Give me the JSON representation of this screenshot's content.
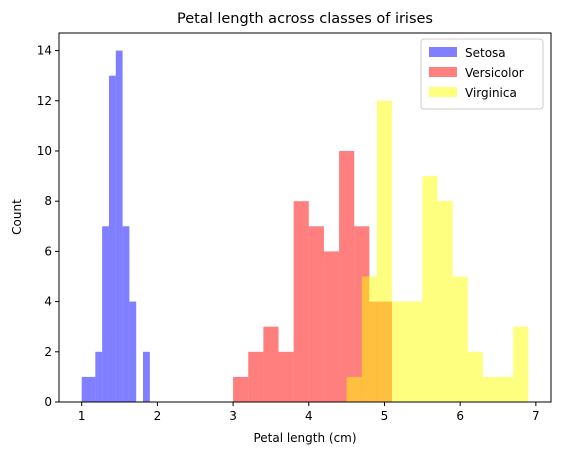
{
  "chart_data": {
    "type": "histogram",
    "title": "Petal length across classes of irises",
    "xlabel": "Petal length (cm)",
    "ylabel": "Count",
    "xlim": [
      0.7,
      7.2
    ],
    "ylim": [
      0,
      14.7
    ],
    "xticks": [
      1,
      2,
      3,
      4,
      5,
      6,
      7
    ],
    "yticks": [
      0,
      2,
      4,
      6,
      8,
      10,
      12,
      14
    ],
    "legend_position": "top-right",
    "series": [
      {
        "name": "Setosa",
        "color": "#0000ff",
        "opacity": 0.5,
        "bin_edges": [
          1.0,
          1.09,
          1.18,
          1.27,
          1.36,
          1.45,
          1.54,
          1.63,
          1.72,
          1.81,
          1.9
        ],
        "counts": [
          1,
          1,
          2,
          7,
          13,
          14,
          7,
          4,
          0,
          2
        ]
      },
      {
        "name": "Versicolor",
        "color": "#ff0000",
        "opacity": 0.5,
        "bin_edges": [
          3.0,
          3.2,
          3.4,
          3.6,
          3.8,
          4.0,
          4.2,
          4.4,
          4.6,
          4.8,
          5.0,
          5.1
        ],
        "counts": [
          1,
          2,
          3,
          2,
          8,
          7,
          6,
          10,
          7,
          4,
          4
        ]
      },
      {
        "name": "Virginica",
        "color": "#ffff00",
        "opacity": 0.5,
        "bin_edges": [
          4.5,
          4.7,
          4.9,
          5.1,
          5.3,
          5.5,
          5.7,
          5.9,
          6.1,
          6.3,
          6.5,
          6.7,
          6.9
        ],
        "counts": [
          1,
          5,
          12,
          4,
          4,
          9,
          8,
          5,
          2,
          1,
          1,
          3
        ]
      }
    ]
  }
}
